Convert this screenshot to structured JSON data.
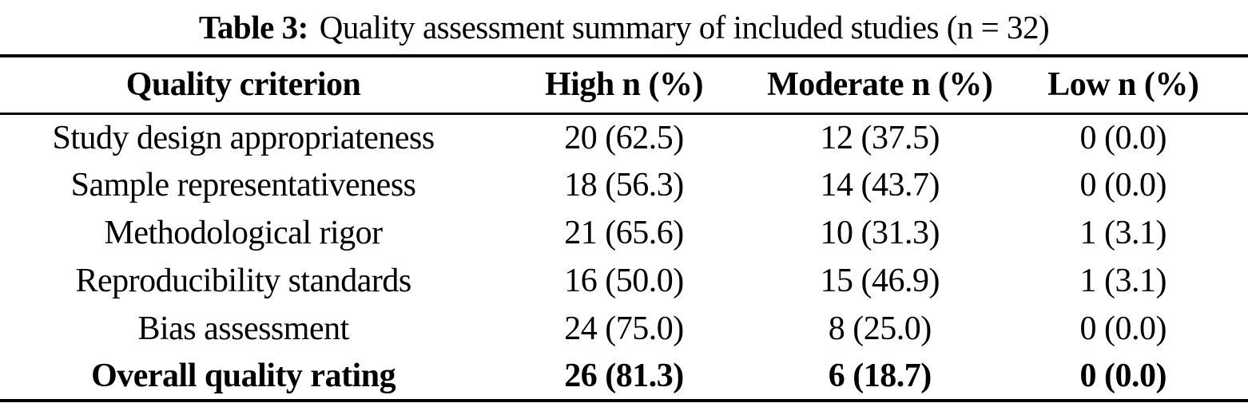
{
  "caption": {
    "label": "Table 3:",
    "text": "Quality assessment summary of included studies (n = 32)"
  },
  "table": {
    "columns": [
      "Quality criterion",
      "High n (%)",
      "Moderate n (%)",
      "Low n (%)"
    ],
    "rows": [
      {
        "criterion": "Study design appropriateness",
        "high": "20 (62.5)",
        "moderate": "12 (37.5)",
        "low": "0 (0.0)"
      },
      {
        "criterion": "Sample representativeness",
        "high": "18 (56.3)",
        "moderate": "14 (43.7)",
        "low": "0 (0.0)"
      },
      {
        "criterion": "Methodological rigor",
        "high": "21 (65.6)",
        "moderate": "10 (31.3)",
        "low": "1 (3.1)"
      },
      {
        "criterion": "Reproducibility standards",
        "high": "16 (50.0)",
        "moderate": "15 (46.9)",
        "low": "1 (3.1)"
      },
      {
        "criterion": "Bias assessment",
        "high": "24 (75.0)",
        "moderate": "8 (25.0)",
        "low": "0 (0.0)"
      },
      {
        "criterion": "Overall quality rating",
        "high": "26 (81.3)",
        "moderate": "6 (18.7)",
        "low": "0 (0.0)"
      }
    ],
    "total_studies": 32
  },
  "colors": {
    "text": "#000000",
    "rules": "#000000",
    "background": "#ffffff"
  }
}
